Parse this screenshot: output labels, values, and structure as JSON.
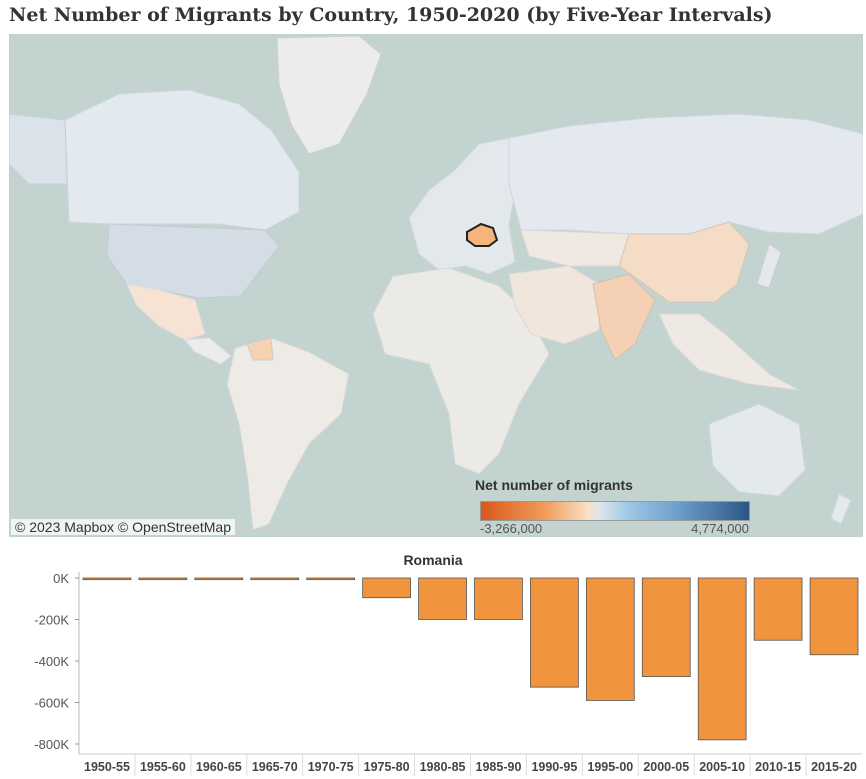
{
  "title": "Net Number of Migrants by Country, 1950-2020 (by Five-Year Intervals)",
  "map": {
    "attribution": "© 2023 Mapbox  © OpenStreetMap",
    "highlighted_country": "Romania",
    "legend": {
      "title": "Net number of migrants",
      "min_label": "-3,266,000",
      "max_label": "4,774,000",
      "min_color": "#d9571a",
      "max_color": "#2a5686"
    },
    "colors": {
      "ocean": "#c3d3d0",
      "land": "#ececec",
      "highlight": "#f4b47a"
    }
  },
  "chart_data": {
    "type": "bar",
    "title": "Romania",
    "categories": [
      "1950-55",
      "1955-60",
      "1960-65",
      "1965-70",
      "1970-75",
      "1975-80",
      "1980-85",
      "1985-90",
      "1990-95",
      "1995-00",
      "2000-05",
      "2005-10",
      "2010-15",
      "2015-20"
    ],
    "values": [
      -8000,
      -8000,
      -8000,
      -8000,
      -8000,
      -95000,
      -200000,
      -200000,
      -526000,
      -590000,
      -475000,
      -780000,
      -300000,
      -370000
    ],
    "yticks": [
      0,
      -200000,
      -400000,
      -600000,
      -800000
    ],
    "ytick_labels": [
      "0K",
      "-200K",
      "-400K",
      "-600K",
      "-800K"
    ],
    "ylim": [
      -800000,
      0
    ],
    "bar_color": "#f0943e"
  }
}
